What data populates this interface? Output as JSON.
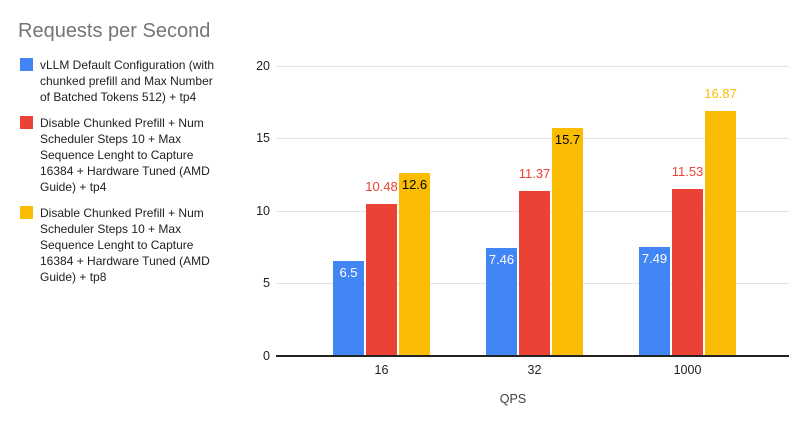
{
  "chart_data": {
    "type": "bar",
    "title": "Requests per Second",
    "xlabel": "QPS",
    "ylabel": "",
    "categories": [
      "16",
      "32",
      "1000"
    ],
    "yticks": [
      0,
      5,
      10,
      15,
      20
    ],
    "ylim": [
      0,
      20
    ],
    "grid": true,
    "legend_position": "left",
    "series": [
      {
        "name": "vLLM Default Configuration (with chunked prefill and Max Number of Batched Tokens 512) + tp4",
        "color": "#4285F4",
        "values": [
          6.5,
          7.46,
          7.49
        ],
        "value_labels": [
          "6.5",
          "7.46",
          "7.49"
        ],
        "label": {
          "placement": "inside",
          "color": "#ffffff"
        }
      },
      {
        "name": "Disable Chunked Prefill + Num Scheduler Steps 10 + Max Sequence Lenght to Capture 16384 + Hardware Tuned (AMD Guide) + tp4",
        "color": "#EA4335",
        "values": [
          10.48,
          11.37,
          11.53
        ],
        "value_labels": [
          "10.48",
          "11.37",
          "11.53"
        ],
        "label": {
          "placement": "above",
          "color": "#EA4335"
        }
      },
      {
        "name": "Disable Chunked Prefill + Num Scheduler Steps 10 + Max Sequence Lenght to Capture 16384 + Hardware Tuned (AMD Guide) + tp8",
        "color": "#FBBC04",
        "values": [
          12.6,
          15.7,
          16.87
        ],
        "value_labels": [
          "12.6",
          "15.7",
          "16.87"
        ],
        "label": {
          "placement": "inside",
          "color": "#000000"
        },
        "label_overrides": {
          "2": {
            "placement": "above",
            "color": "#FBBC04"
          }
        }
      }
    ],
    "colors": {
      "background": "#ffffff",
      "grid": "#e3e3e3",
      "baseline": "#212121",
      "title": "#757575",
      "axis_text": "#212121",
      "legend_text": "#212121"
    }
  }
}
